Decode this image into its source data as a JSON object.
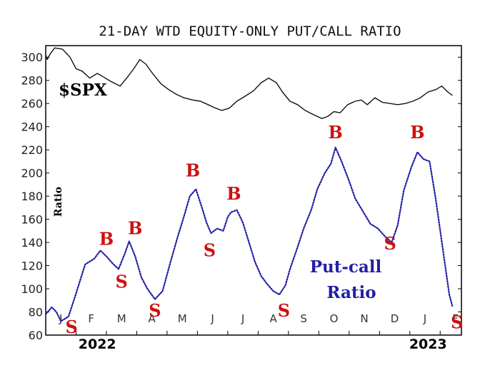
{
  "chart_data": {
    "type": "line",
    "title": "21-DAY WTD EQUITY-ONLY PUT/CALL RATIO",
    "ylabel": "Ratio",
    "y_ticks": [
      "300",
      "280",
      "260",
      "240",
      "220",
      "200",
      "180",
      "160",
      "140",
      "120",
      "100",
      "80",
      "60"
    ],
    "ylim": [
      60,
      310
    ],
    "month_labels": [
      "J",
      "F",
      "M",
      "A",
      "M",
      "J",
      "J",
      "A",
      "S",
      "O",
      "N",
      "D",
      "J",
      "F"
    ],
    "year_labels": [
      "2022",
      "2023"
    ],
    "series_labels": {
      "spx": "$SPX",
      "pc_line1": "Put-call",
      "pc_line2": "Ratio"
    },
    "colors": {
      "spx": "#111111",
      "putcall": "#1f1fa6",
      "signals": "#cc1111"
    },
    "series": [
      {
        "name": "$SPX",
        "style": "solid",
        "x": [
          0,
          0.05,
          0.15,
          0.3,
          0.55,
          0.8,
          1.0,
          1.2,
          1.45,
          1.7,
          1.9,
          2.15,
          2.45,
          2.7,
          2.9,
          3.1,
          3.3,
          3.55,
          3.8,
          4.05,
          4.3,
          4.55,
          4.85,
          5.1,
          5.35,
          5.6,
          5.8,
          6.05,
          6.3,
          6.55,
          6.85,
          7.1,
          7.35,
          7.6,
          7.8,
          8.05,
          8.3,
          8.55,
          8.85,
          9.1,
          9.3,
          9.5,
          9.7,
          9.95,
          10.2,
          10.4,
          10.6,
          10.85,
          11.1,
          11.35,
          11.6,
          11.85,
          12.1,
          12.35,
          12.6,
          12.85,
          13.05,
          13.25,
          13.4
        ],
        "y": [
          302,
          298,
          303,
          308,
          307,
          300,
          290,
          288,
          282,
          286,
          283,
          279,
          275,
          283,
          290,
          298,
          294,
          285,
          277,
          272,
          268,
          265,
          263,
          262,
          259,
          256,
          254,
          256,
          262,
          266,
          271,
          278,
          282,
          278,
          270,
          262,
          259,
          254,
          250,
          247,
          249,
          253,
          252,
          259,
          262,
          263,
          259,
          265,
          261,
          260,
          259,
          260,
          262,
          265,
          270,
          272,
          275,
          270,
          267
        ]
      },
      {
        "name": "Put-call Ratio",
        "style": "dotted",
        "x": [
          0,
          0.2,
          0.35,
          0.5,
          0.75,
          1.0,
          1.3,
          1.6,
          1.8,
          2.0,
          2.2,
          2.4,
          2.6,
          2.75,
          2.95,
          3.15,
          3.35,
          3.6,
          3.85,
          4.1,
          4.35,
          4.55,
          4.75,
          4.95,
          5.15,
          5.3,
          5.45,
          5.65,
          5.85,
          6.0,
          6.1,
          6.3,
          6.5,
          6.7,
          6.9,
          7.1,
          7.3,
          7.5,
          7.7,
          7.9,
          8.05,
          8.3,
          8.5,
          8.75,
          8.95,
          9.2,
          9.4,
          9.55,
          9.75,
          10.0,
          10.2,
          10.45,
          10.7,
          10.95,
          11.15,
          11.4,
          11.6,
          11.8,
          12.05,
          12.25,
          12.45,
          12.65,
          12.85,
          13.1,
          13.3,
          13.4
        ],
        "y": [
          78,
          84,
          80,
          72,
          76,
          96,
          121,
          126,
          133,
          128,
          122,
          117,
          130,
          141,
          128,
          110,
          100,
          91,
          98,
          122,
          145,
          162,
          180,
          186,
          170,
          157,
          148,
          152,
          150,
          162,
          166,
          168,
          157,
          140,
          123,
          111,
          104,
          98,
          95,
          103,
          117,
          136,
          152,
          168,
          186,
          200,
          208,
          222,
          210,
          193,
          178,
          167,
          156,
          152,
          146,
          140,
          155,
          185,
          205,
          218,
          212,
          210,
          178,
          132,
          95,
          85
        ]
      }
    ],
    "signals": [
      {
        "label": "B",
        "x": 2.0,
        "y": 138
      },
      {
        "label": "B",
        "x": 2.95,
        "y": 147
      },
      {
        "label": "B",
        "x": 4.85,
        "y": 197
      },
      {
        "label": "B",
        "x": 6.2,
        "y": 177
      },
      {
        "label": "B",
        "x": 9.55,
        "y": 230
      },
      {
        "label": "B",
        "x": 12.25,
        "y": 230
      },
      {
        "label": "S",
        "x": 0.85,
        "y": 62
      },
      {
        "label": "S",
        "x": 2.5,
        "y": 101
      },
      {
        "label": "S",
        "x": 3.6,
        "y": 76
      },
      {
        "label": "S",
        "x": 5.4,
        "y": 128
      },
      {
        "label": "S",
        "x": 7.85,
        "y": 76
      },
      {
        "label": "S",
        "x": 11.35,
        "y": 134
      },
      {
        "label": "S",
        "x": 13.55,
        "y": 66
      }
    ]
  }
}
